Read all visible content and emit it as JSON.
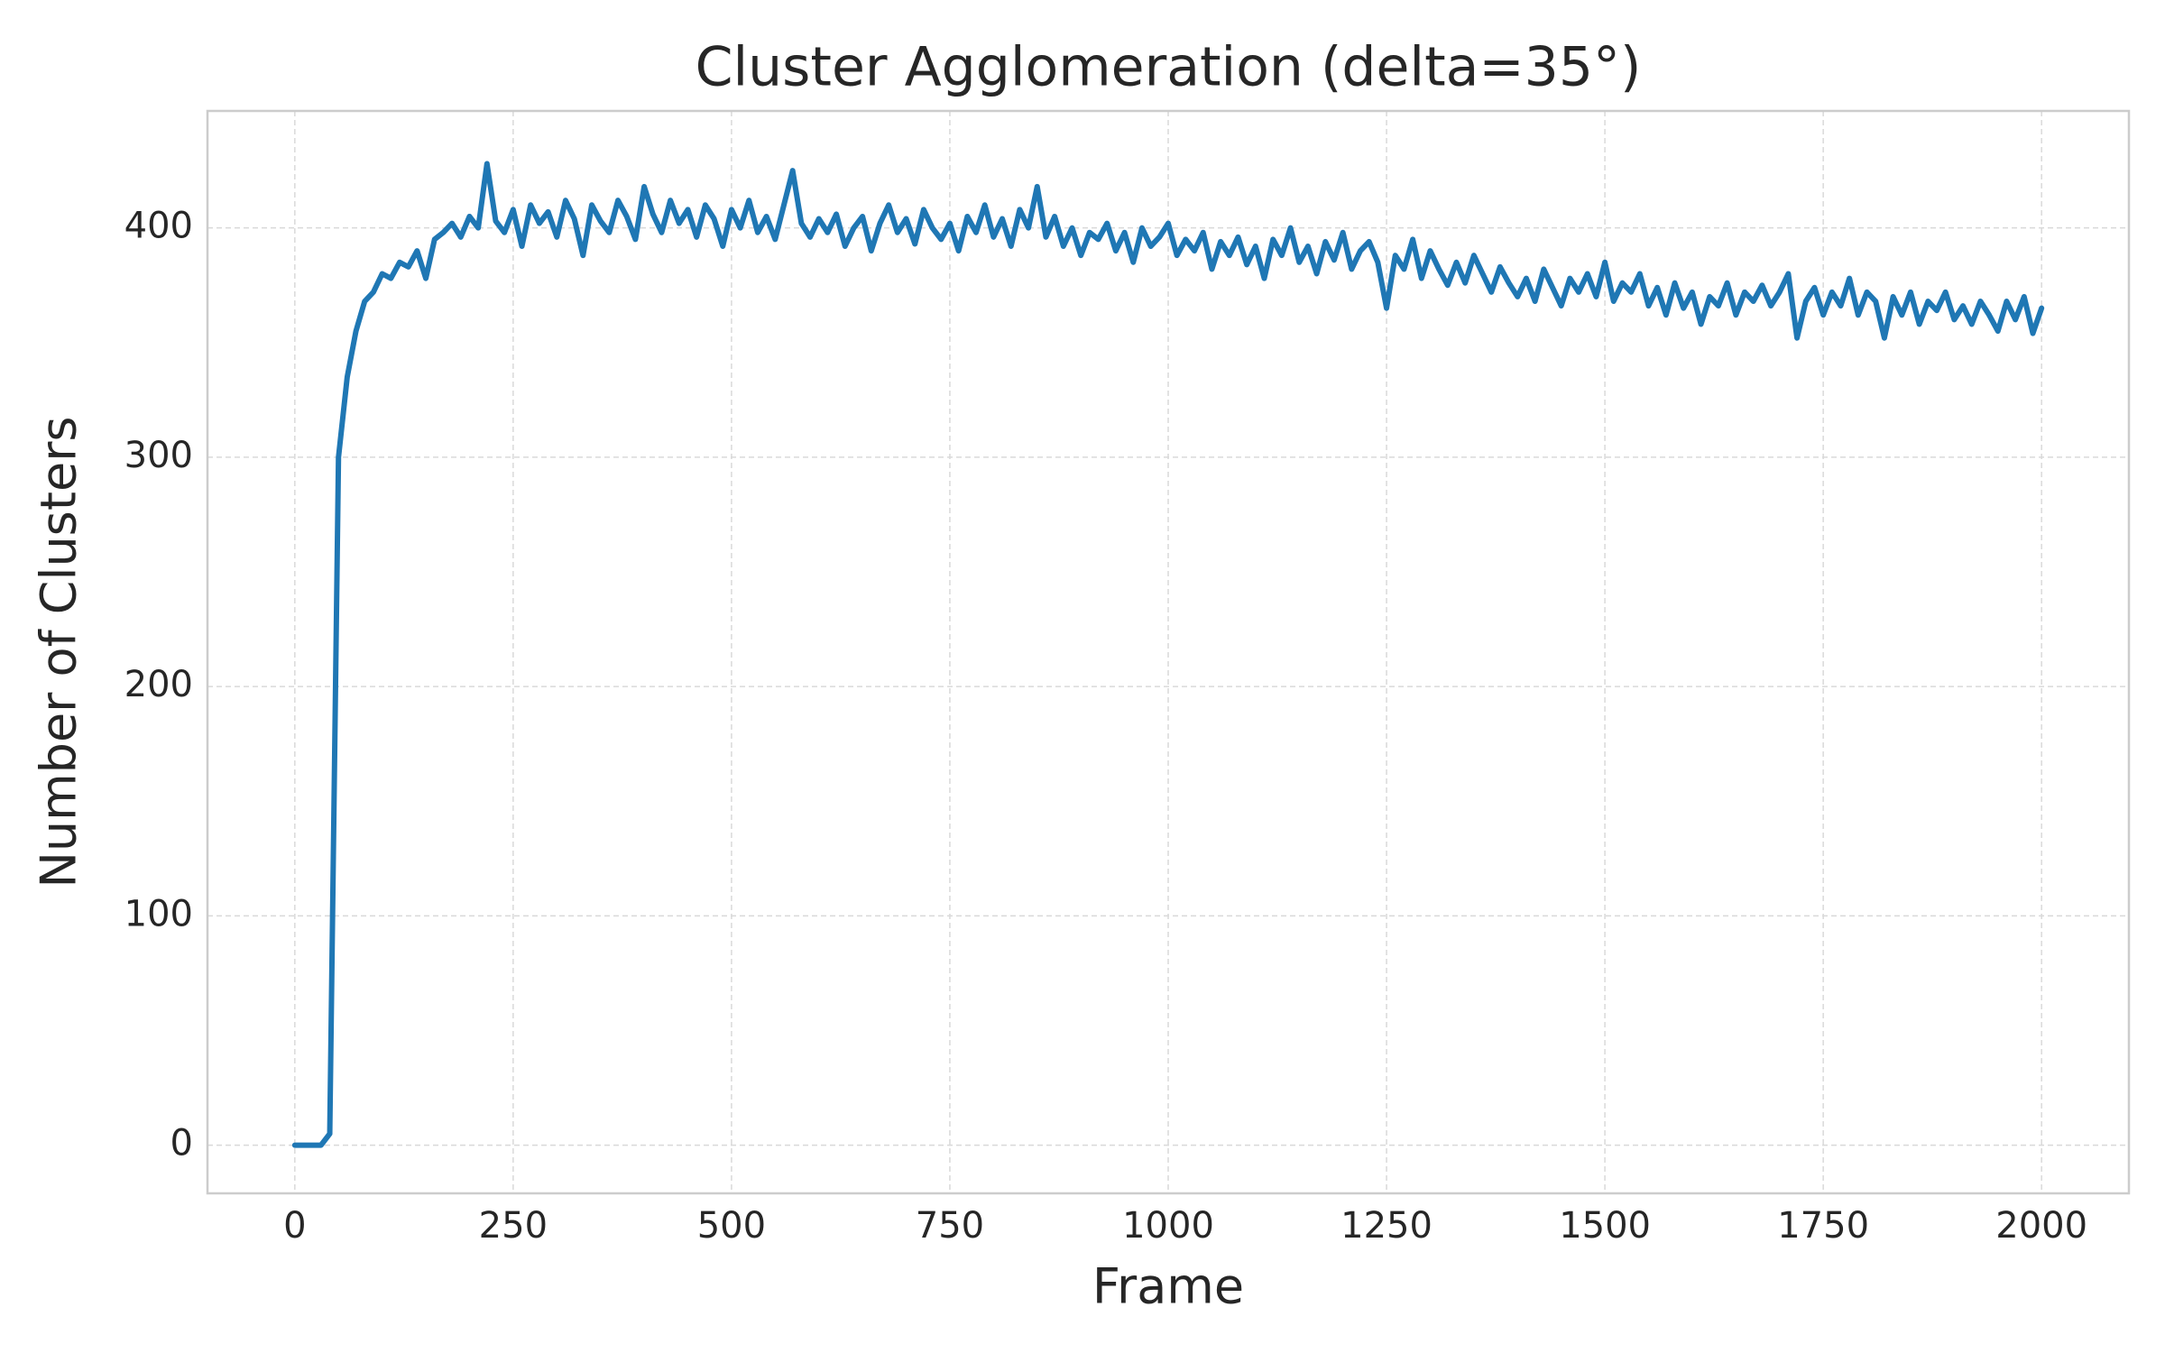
{
  "chart_data": {
    "type": "line",
    "title": "Cluster Agglomeration (delta=35°)",
    "x_label": "Frame",
    "y_label": "Number of Clusters",
    "x": [
      0,
      10,
      20,
      30,
      40,
      50,
      60,
      70,
      80,
      90,
      100,
      110,
      120,
      130,
      140,
      150,
      160,
      170,
      180,
      190,
      200,
      210,
      220,
      230,
      240,
      250,
      260,
      270,
      280,
      290,
      300,
      310,
      320,
      330,
      340,
      350,
      360,
      370,
      380,
      390,
      400,
      410,
      420,
      430,
      440,
      450,
      460,
      470,
      480,
      490,
      500,
      510,
      520,
      530,
      540,
      550,
      560,
      570,
      580,
      590,
      600,
      610,
      620,
      630,
      640,
      650,
      660,
      670,
      680,
      690,
      700,
      710,
      720,
      730,
      740,
      750,
      760,
      770,
      780,
      790,
      800,
      810,
      820,
      830,
      840,
      850,
      860,
      870,
      880,
      890,
      900,
      910,
      920,
      930,
      940,
      950,
      960,
      970,
      980,
      990,
      1000,
      1010,
      1020,
      1030,
      1040,
      1050,
      1060,
      1070,
      1080,
      1090,
      1100,
      1110,
      1120,
      1130,
      1140,
      1150,
      1160,
      1170,
      1180,
      1190,
      1200,
      1210,
      1220,
      1230,
      1240,
      1250,
      1260,
      1270,
      1280,
      1290,
      1300,
      1310,
      1320,
      1330,
      1340,
      1350,
      1360,
      1370,
      1380,
      1390,
      1400,
      1410,
      1420,
      1430,
      1440,
      1450,
      1460,
      1470,
      1480,
      1490,
      1500,
      1510,
      1520,
      1530,
      1540,
      1550,
      1560,
      1570,
      1580,
      1590,
      1600,
      1610,
      1620,
      1630,
      1640,
      1650,
      1660,
      1670,
      1680,
      1690,
      1700,
      1710,
      1720,
      1730,
      1740,
      1750,
      1760,
      1770,
      1780,
      1790,
      1800,
      1810,
      1820,
      1830,
      1840,
      1850,
      1860,
      1870,
      1880,
      1890,
      1900,
      1910,
      1920,
      1930,
      1940,
      1950,
      1960,
      1970,
      1980,
      1990,
      2000
    ],
    "series": [
      {
        "color": "#1f77b4",
        "values": [
          0,
          0,
          0,
          0,
          5,
          300,
          335,
          355,
          368,
          372,
          380,
          378,
          385,
          383,
          390,
          378,
          395,
          398,
          402,
          396,
          405,
          400,
          428,
          403,
          398,
          408,
          392,
          410,
          402,
          407,
          396,
          412,
          404,
          388,
          410,
          403,
          398,
          412,
          405,
          395,
          418,
          406,
          398,
          412,
          402,
          408,
          396,
          410,
          404,
          392,
          408,
          400,
          412,
          398,
          405,
          395,
          410,
          425,
          402,
          396,
          404,
          398,
          406,
          392,
          400,
          405,
          390,
          402,
          410,
          398,
          404,
          393,
          408,
          400,
          395,
          402,
          390,
          405,
          398,
          410,
          396,
          404,
          392,
          408,
          400,
          418,
          396,
          405,
          392,
          400,
          388,
          398,
          395,
          402,
          390,
          398,
          385,
          400,
          392,
          396,
          402,
          388,
          395,
          390,
          398,
          382,
          394,
          388,
          396,
          384,
          392,
          378,
          395,
          388,
          400,
          385,
          392,
          380,
          394,
          386,
          398,
          382,
          390,
          394,
          385,
          365,
          388,
          382,
          395,
          378,
          390,
          382,
          375,
          385,
          376,
          388,
          380,
          372,
          383,
          376,
          370,
          378,
          368,
          382,
          374,
          366,
          378,
          372,
          380,
          370,
          385,
          368,
          376,
          372,
          380,
          366,
          374,
          362,
          376,
          365,
          372,
          358,
          370,
          366,
          376,
          362,
          372,
          368,
          375,
          366,
          372,
          380,
          352,
          368,
          374,
          362,
          372,
          366,
          378,
          362,
          372,
          368,
          352,
          370,
          362,
          372,
          358,
          368,
          364,
          372,
          360,
          366,
          358,
          368,
          362,
          355,
          368,
          360,
          370,
          354,
          365
        ]
      }
    ],
    "xlim": [
      -100,
      2100
    ],
    "xticks": [
      0,
      250,
      500,
      750,
      1000,
      1250,
      1500,
      1750,
      2000
    ],
    "ylim": [
      -21,
      451
    ],
    "yticks": [
      0,
      100,
      200,
      300,
      400
    ],
    "grid": true
  }
}
